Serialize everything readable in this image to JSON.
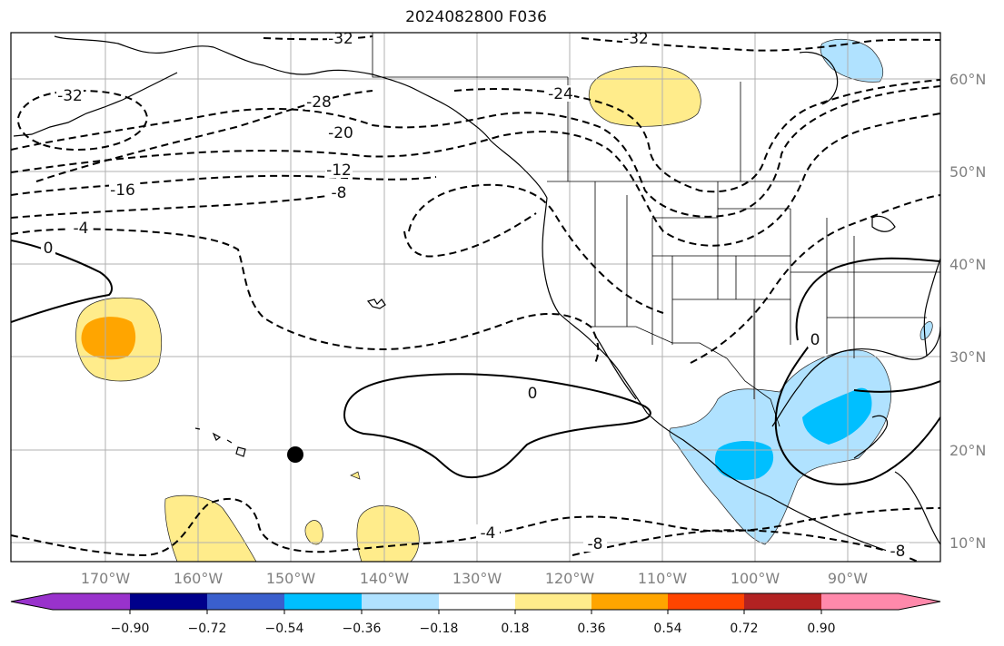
{
  "title": "2024082800 F036",
  "lat_labels": [
    "60°N",
    "50°N",
    "40°N",
    "30°N",
    "20°N",
    "10°N"
  ],
  "lon_labels": [
    "170°W",
    "160°W",
    "150°W",
    "140°W",
    "130°W",
    "120°W",
    "110°W",
    "100°W",
    "90°W"
  ],
  "contour_labels": {
    "c1": "-32",
    "c2": "-32",
    "c3": "-32",
    "c4": "-28",
    "c5": "-24",
    "c6": "-20",
    "c7": "-16",
    "c8": "-12",
    "c9": "-8",
    "c10": "-4",
    "c11": "0",
    "c12": "0",
    "c13": "0",
    "c14": "-4",
    "c15": "-8",
    "c16": "-8"
  },
  "colorbar": {
    "colors": [
      "#9932cc",
      "#00008b",
      "#3a5fcd",
      "#00bfff",
      "#b0e2ff",
      "#ffffff",
      "#ffec8b",
      "#ffa500",
      "#ff4500",
      "#b22222",
      "#ff89ab"
    ],
    "ticks": [
      "−0.90",
      "−0.72",
      "−0.54",
      "−0.36",
      "−0.18",
      "0.18",
      "0.36",
      "0.54",
      "0.72",
      "0.90"
    ]
  },
  "legend_colors": {
    "contour": "#000000",
    "positive_fill": "#ffec8b",
    "positive_core": "#ffa500",
    "negative_fill": "#b0e2ff",
    "negative_core": "#00bfff"
  },
  "marker": "storm-position-dot"
}
